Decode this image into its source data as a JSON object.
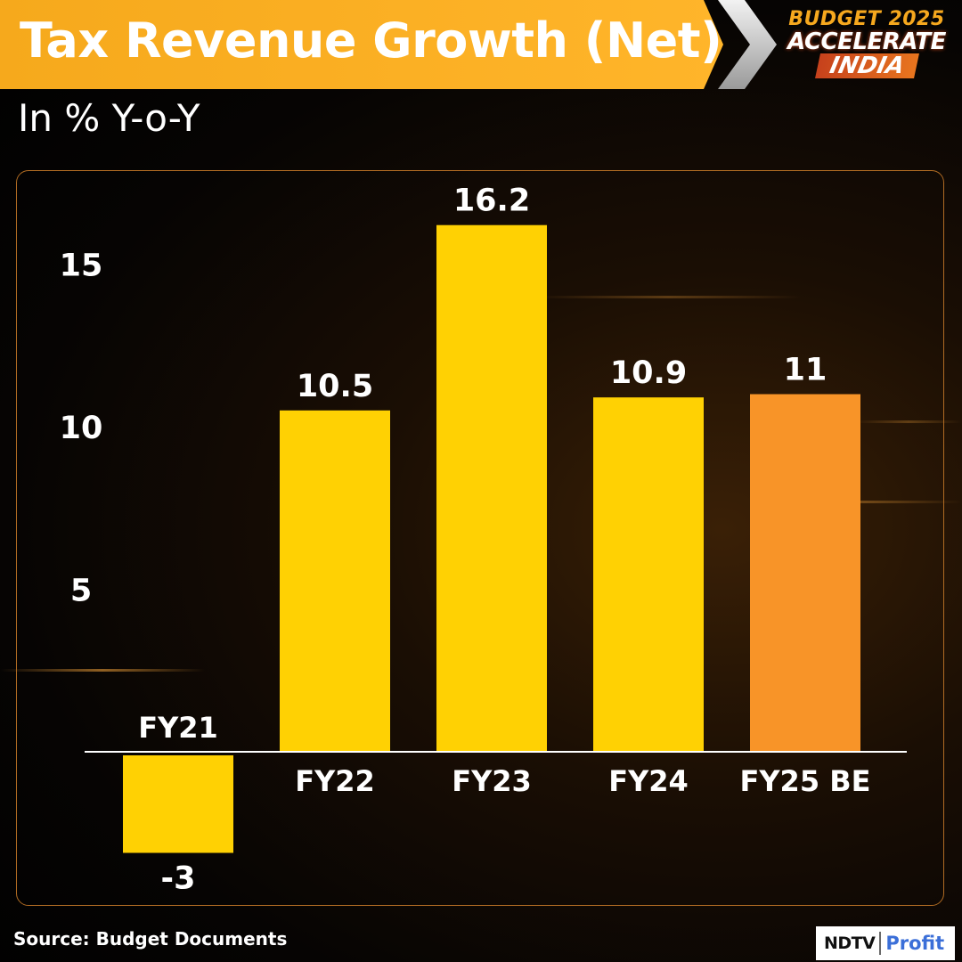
{
  "header": {
    "title": "Tax Revenue Growth (Net)",
    "subtitle": "In % Y-o-Y"
  },
  "logo": {
    "line1": "BUDGET 2025",
    "line2": "ACCELERATE",
    "line3": "INDIA"
  },
  "colors": {
    "bar": "#FFD103",
    "highlight": "#F89428",
    "title_bar": "#FFB22A",
    "brand_blue": "#3B6FD8"
  },
  "chart_data": {
    "type": "bar",
    "title": "Tax Revenue Growth (Net)",
    "ylabel": "In % Y-o-Y",
    "xlabel": "",
    "categories": [
      "FY21",
      "FY22",
      "FY23",
      "FY24",
      "FY25 BE"
    ],
    "values": [
      -3,
      10.5,
      16.2,
      10.9,
      11
    ],
    "data_labels": [
      "-3",
      "10.5",
      "16.2",
      "10.9",
      "11"
    ],
    "yticks": [
      5,
      10,
      15
    ],
    "ylim": [
      -3.5,
      17.5
    ],
    "highlighted_category": "FY25 BE",
    "grid": false,
    "legend": "none"
  },
  "footer": {
    "source": "Source: Budget Documents",
    "brand_main": "NDTV",
    "brand_sub": "Profit"
  }
}
